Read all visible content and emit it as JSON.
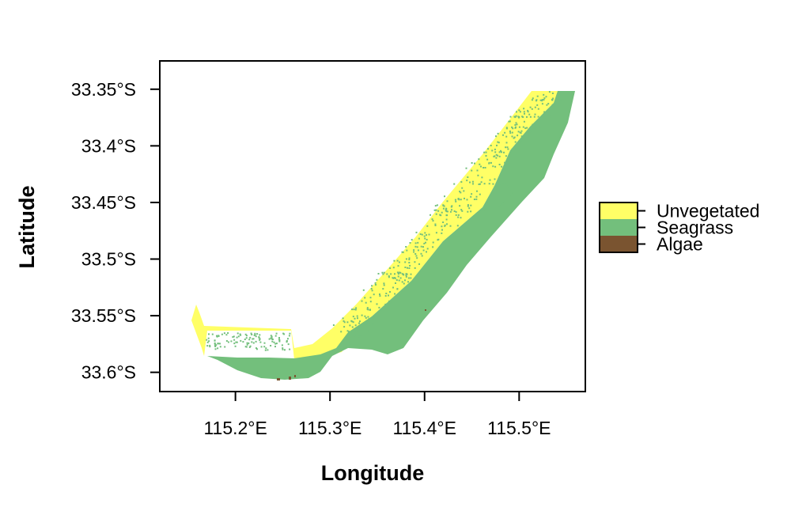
{
  "map": {
    "xlabel": "Longitude",
    "ylabel": "Latitude",
    "x_ticks": [
      {
        "value": 115.2,
        "label": "115.2°E"
      },
      {
        "value": 115.3,
        "label": "115.3°E"
      },
      {
        "value": 115.4,
        "label": "115.4°E"
      },
      {
        "value": 115.5,
        "label": "115.5°E"
      }
    ],
    "y_ticks": [
      {
        "value": -33.35,
        "label": "33.35°S"
      },
      {
        "value": -33.4,
        "label": "33.4°S"
      },
      {
        "value": -33.45,
        "label": "33.45°S"
      },
      {
        "value": -33.5,
        "label": "33.5°S"
      },
      {
        "value": -33.55,
        "label": "33.55°S"
      },
      {
        "value": -33.6,
        "label": "33.6°S"
      }
    ],
    "xlim": [
      115.12,
      115.57
    ],
    "ylim": [
      -33.617,
      -33.325
    ],
    "legend": [
      {
        "label": "Unvegetated",
        "color": "#FFFF66"
      },
      {
        "label": "Seagrass",
        "color": "#73BF7C"
      },
      {
        "label": "Algae",
        "color": "#7A5430"
      }
    ],
    "colors": {
      "unvegetated": "#FFFF66",
      "seagrass": "#73BF7C",
      "algae": "#7A5430"
    }
  }
}
